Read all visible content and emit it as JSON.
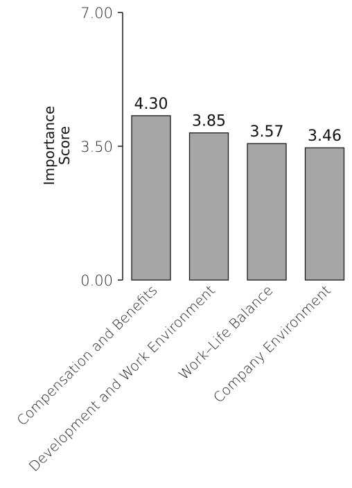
{
  "chart_data": {
    "type": "bar",
    "categories": [
      "Compensation and Benefits",
      "Development and Work Environment",
      "Work–Life Balance",
      "Company Environment"
    ],
    "values": [
      4.3,
      3.85,
      3.57,
      3.46
    ],
    "value_labels": [
      "4.30",
      "3.85",
      "3.57",
      "3.46"
    ],
    "ylabel_lines": [
      "Importance",
      "Score"
    ],
    "ylim": [
      0,
      7
    ],
    "yticks": [
      {
        "value": 0,
        "label": "0.00"
      },
      {
        "value": 3.5,
        "label": "3.50"
      },
      {
        "value": 7,
        "label": "7.00"
      }
    ],
    "grid": false,
    "legend": "none",
    "colors": {
      "bar_fill": "#a6a6a6",
      "bar_stroke": "#1a1a1a",
      "axis": "#1a1a1a"
    }
  }
}
